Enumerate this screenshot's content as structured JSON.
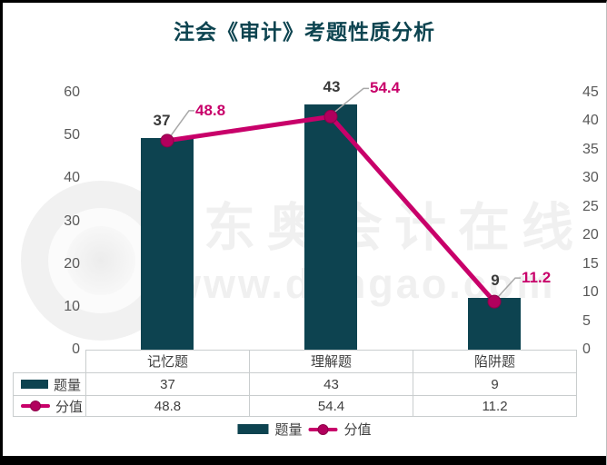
{
  "chart_data": {
    "type": "combo-bar-line",
    "title": "注会《审计》考题性质分析",
    "categories": [
      "记忆题",
      "理解题",
      "陷阱题"
    ],
    "series": [
      {
        "name": "题量",
        "type": "bar",
        "axis": "right",
        "values": [
          37,
          43,
          9
        ]
      },
      {
        "name": "分值",
        "type": "line",
        "axis": "left",
        "values": [
          48.8,
          54.4,
          11.2
        ]
      }
    ],
    "left_axis": {
      "min": 0,
      "max": 60,
      "step": 10,
      "ticks": [
        0,
        10,
        20,
        30,
        40,
        50,
        60
      ]
    },
    "right_axis": {
      "min": 0,
      "max": 45,
      "step": 5,
      "ticks": [
        0,
        5,
        10,
        15,
        20,
        25,
        30,
        35,
        40,
        45
      ]
    },
    "legend": [
      "题量",
      "分值"
    ],
    "data_table": {
      "row_headers": [
        "题量",
        "分值"
      ],
      "rows": [
        [
          "37",
          "43",
          "9"
        ],
        [
          "48.8",
          "54.4",
          "11.2"
        ]
      ]
    },
    "colors": {
      "bar": "#0d4350",
      "line": "#c8006a",
      "line_marker_fill": "#b1005d",
      "line_marker_edge": "#8d0049",
      "bar_label": "#3a3a3a",
      "line_label": "#c8006a",
      "axis_label": "#595959",
      "title": "#0d4450",
      "leader": "#a8a8a8"
    }
  },
  "watermark": {
    "brand_text": "东奥会计在线",
    "url_text": "www.dongao.com"
  }
}
